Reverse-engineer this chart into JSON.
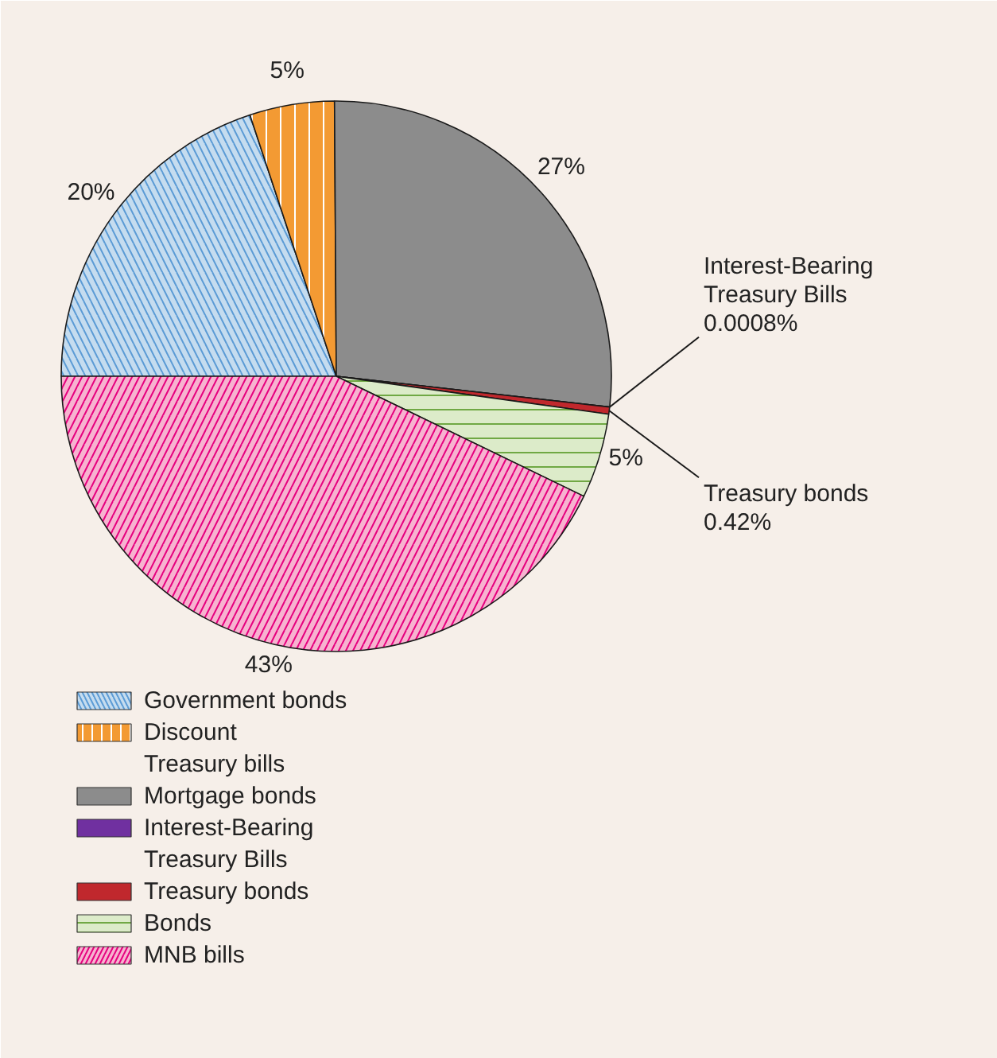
{
  "chart_data": {
    "type": "pie",
    "categories": [
      "Government bonds",
      "Discount Treasury bills",
      "Mortgage bonds",
      "Interest-Bearing Treasury Bills",
      "Treasury bonds",
      "Bonds",
      "MNB bills"
    ],
    "values": [
      20,
      5,
      27,
      0.0008,
      0.42,
      5,
      43
    ],
    "colors": [
      "#c5dcef",
      "#f39a33",
      "#8c8c8c",
      "#7030a0",
      "#c0282d",
      "#dcebc9",
      "#f7b3d0"
    ],
    "value_labels": [
      "20%",
      "5%",
      "27%",
      "0.0008%",
      "0.42%",
      "5%",
      "43%"
    ],
    "legend": "bottom"
  }
}
